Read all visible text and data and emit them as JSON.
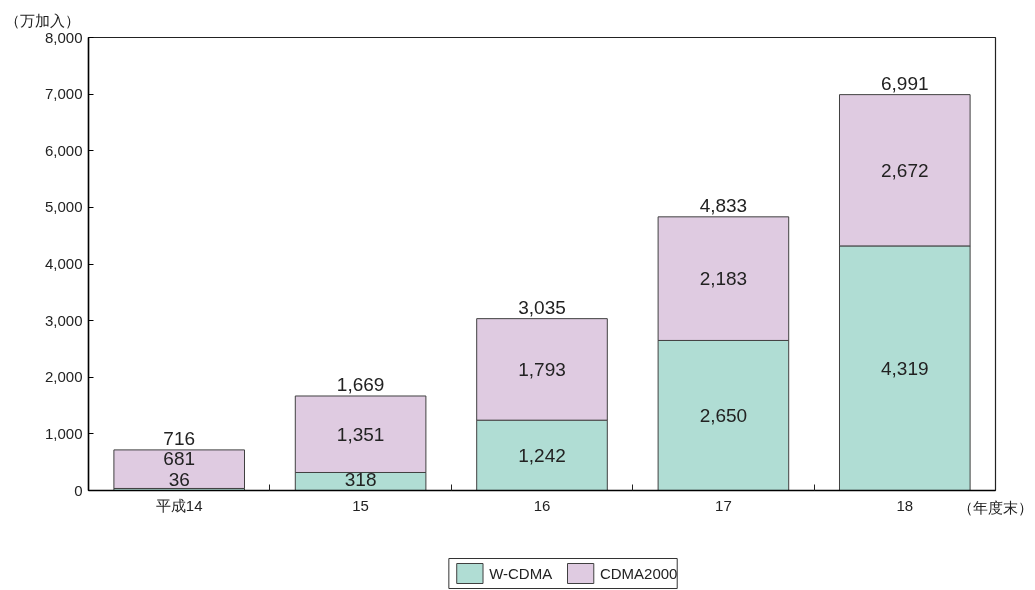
{
  "chart_data": {
    "type": "bar",
    "stacked": true,
    "categories": [
      "平成14",
      "15",
      "16",
      "17",
      "18"
    ],
    "series": [
      {
        "name": "W-CDMA",
        "color": "#b0ddd4",
        "values": [
          36,
          318,
          1242,
          2650,
          4319
        ],
        "value_labels": [
          "36",
          "318",
          "1,242",
          "2,650",
          "4,319"
        ]
      },
      {
        "name": "CDMA2000",
        "color": "#dfcbe1",
        "values": [
          681,
          1351,
          1793,
          2183,
          2672
        ],
        "value_labels": [
          "681",
          "1,351",
          "1,793",
          "2,183",
          "2,672"
        ]
      }
    ],
    "totals": [
      "716",
      "1,669",
      "3,035",
      "4,833",
      "6,991"
    ],
    "xlabel": "（年度末）",
    "ylabel": "（万加入）",
    "ylim": [
      0,
      8000
    ],
    "yticks": [
      0,
      {
        "value": 1000,
        "label": "1,000"
      },
      {
        "value": 2000,
        "label": "2,000"
      },
      {
        "value": 3000,
        "label": "3,000"
      },
      {
        "value": 4000,
        "label": "4,000"
      },
      {
        "value": 5000,
        "label": "5,000"
      },
      {
        "value": 6000,
        "label": "6,000"
      },
      {
        "value": 7000,
        "label": "7,000"
      },
      {
        "value": 8000,
        "label": "8,000"
      }
    ],
    "grid": false,
    "legend": "bottom"
  }
}
